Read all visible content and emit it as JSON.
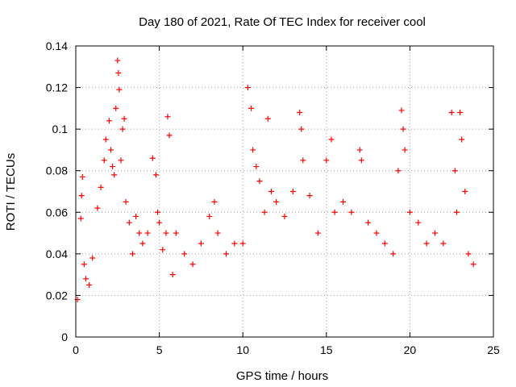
{
  "chart_data": {
    "type": "scatter",
    "title": "Day 180 of 2021, Rate Of TEC Index for receiver cool",
    "xlabel": "GPS time / hours",
    "ylabel": "ROTI / TECUs",
    "xlim": [
      0,
      25
    ],
    "ylim": [
      0,
      0.14
    ],
    "x_ticks": [
      0,
      5,
      10,
      15,
      20,
      25
    ],
    "y_ticks": [
      0,
      0.02,
      0.04,
      0.06,
      0.08,
      0.1,
      0.12,
      0.14
    ],
    "grid": true,
    "marker": "plus",
    "color": "#ff0000",
    "series": [
      {
        "x": [
          0.1,
          0.3,
          0.35,
          0.4,
          0.5,
          0.6,
          0.8,
          1.0,
          1.3,
          1.5,
          1.7,
          1.8,
          2.0,
          2.1,
          2.2,
          2.3,
          2.4,
          2.5,
          2.55,
          2.6,
          2.7,
          2.8,
          2.9,
          3.0,
          3.2,
          3.4,
          3.6,
          3.8,
          4.0,
          4.3,
          4.6,
          4.8,
          4.9,
          5.0,
          5.2,
          5.4,
          5.5,
          5.6,
          5.8,
          6.0,
          6.5,
          7.0,
          7.5,
          8.0,
          8.3,
          8.5,
          9.0,
          9.5,
          10.0,
          10.3,
          10.5,
          10.6,
          10.8,
          11.0,
          11.3,
          11.5,
          11.7,
          12.0,
          12.5,
          13.0,
          13.4,
          13.5,
          13.6,
          14.0,
          14.5,
          15.0,
          15.3,
          15.5,
          16.0,
          16.5,
          17.0,
          17.1,
          17.5,
          18.0,
          18.5,
          19.0,
          19.3,
          19.5,
          19.6,
          19.7,
          20.0,
          20.5,
          21.0,
          21.5,
          22.0,
          22.5,
          22.7,
          22.8,
          23.0,
          23.1,
          23.3,
          23.5,
          23.8
        ],
        "y": [
          0.018,
          0.057,
          0.068,
          0.077,
          0.035,
          0.028,
          0.025,
          0.038,
          0.062,
          0.072,
          0.085,
          0.095,
          0.104,
          0.09,
          0.082,
          0.078,
          0.11,
          0.133,
          0.127,
          0.119,
          0.085,
          0.1,
          0.105,
          0.065,
          0.055,
          0.04,
          0.058,
          0.05,
          0.045,
          0.05,
          0.086,
          0.078,
          0.06,
          0.055,
          0.042,
          0.05,
          0.106,
          0.097,
          0.03,
          0.05,
          0.04,
          0.035,
          0.045,
          0.058,
          0.065,
          0.05,
          0.04,
          0.045,
          0.045,
          0.12,
          0.11,
          0.09,
          0.082,
          0.075,
          0.06,
          0.105,
          0.07,
          0.065,
          0.058,
          0.07,
          0.108,
          0.1,
          0.085,
          0.068,
          0.05,
          0.085,
          0.095,
          0.06,
          0.065,
          0.06,
          0.09,
          0.085,
          0.055,
          0.05,
          0.045,
          0.04,
          0.08,
          0.109,
          0.1,
          0.09,
          0.06,
          0.055,
          0.045,
          0.05,
          0.045,
          0.108,
          0.08,
          0.06,
          0.108,
          0.095,
          0.07,
          0.04,
          0.035
        ]
      }
    ]
  }
}
